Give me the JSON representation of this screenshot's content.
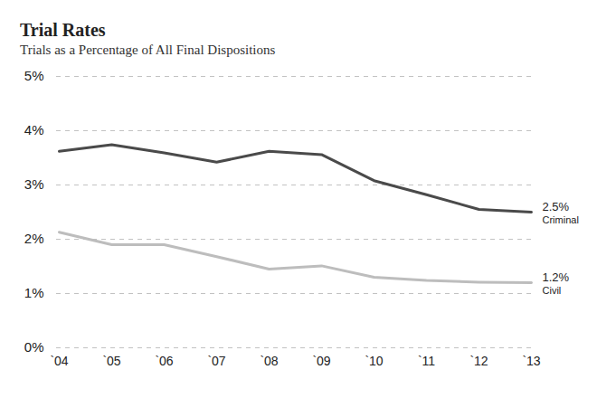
{
  "chart_data": {
    "type": "line",
    "title": "Trial Rates",
    "subtitle": "Trials as a Percentage of All Final Dispositions",
    "categories": [
      "`04",
      "`05",
      "`06",
      "`07",
      "`08",
      "`09",
      "`10",
      "`11",
      "`12",
      "`13"
    ],
    "series": [
      {
        "name": "Criminal",
        "color": "#4a4a4a",
        "values": [
          3.62,
          3.74,
          3.59,
          3.42,
          3.62,
          3.56,
          3.08,
          2.82,
          2.55,
          2.5
        ],
        "value_labels": [
          null,
          null,
          null,
          null,
          null,
          null,
          null,
          null,
          null,
          "2.5%"
        ]
      },
      {
        "name": "Civil",
        "color": "#bdbdbd",
        "values": [
          2.13,
          1.9,
          1.9,
          1.68,
          1.45,
          1.51,
          1.3,
          1.24,
          1.21,
          1.2
        ],
        "value_labels": [
          null,
          null,
          null,
          null,
          null,
          null,
          null,
          null,
          null,
          "1.2%"
        ]
      }
    ],
    "ylim": [
      0,
      5
    ],
    "yticks": [
      {
        "value": 0,
        "label": "0%"
      },
      {
        "value": 1,
        "label": "1%"
      },
      {
        "value": 2,
        "label": "2%"
      },
      {
        "value": 3,
        "label": "3%"
      },
      {
        "value": 4,
        "label": "4%"
      },
      {
        "value": 5,
        "label": "5%"
      }
    ],
    "grid": true
  }
}
